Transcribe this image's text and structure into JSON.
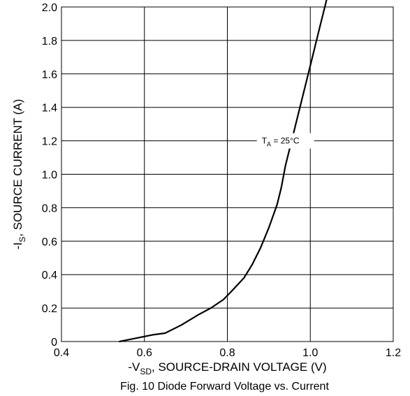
{
  "chart_data": {
    "type": "line",
    "title": "",
    "caption": "Fig. 10 Diode Forward Voltage vs. Current",
    "xlabel": {
      "prefix": "-V",
      "sub": "SD",
      "rest": ", SOURCE-DRAIN VOLTAGE (V)"
    },
    "ylabel": {
      "prefix": "-I",
      "sub": "S",
      "rest": ", SOURCE CURRENT (A)"
    },
    "xlim": [
      0.4,
      1.2
    ],
    "ylim": [
      0,
      2.0
    ],
    "x_ticks": [
      0.4,
      0.6,
      0.8,
      1.0,
      1.2
    ],
    "x_tick_labels": [
      "0.4",
      "0.6",
      "0.8",
      "1.0",
      "1.2"
    ],
    "y_ticks": [
      0,
      0.2,
      0.4,
      0.6,
      0.8,
      1.0,
      1.2,
      1.4,
      1.6,
      1.8,
      2.0
    ],
    "y_tick_labels": [
      "0",
      "0.2",
      "0.4",
      "0.6",
      "0.8",
      "1.0",
      "1.2",
      "1.4",
      "1.6",
      "1.8",
      "2.0"
    ],
    "x_grid": [
      0.6,
      0.8,
      1.0
    ],
    "grid": true,
    "series": [
      {
        "x": [
          0.54,
          0.58,
          0.62,
          0.65,
          0.69,
          0.73,
          0.76,
          0.79,
          0.81,
          0.84,
          0.86,
          0.88,
          0.9,
          0.92,
          0.93,
          0.94,
          0.96,
          0.98,
          1.0,
          1.02,
          1.04
        ],
        "y": [
          0.0,
          0.02,
          0.04,
          0.05,
          0.1,
          0.16,
          0.2,
          0.25,
          0.3,
          0.38,
          0.46,
          0.56,
          0.68,
          0.82,
          0.92,
          1.05,
          1.25,
          1.45,
          1.65,
          1.85,
          2.05
        ]
      }
    ],
    "annotations": [
      {
        "prefix": "T",
        "sub": "A",
        "rest": " = 25°C",
        "x": 0.93,
        "y": 1.2
      }
    ]
  }
}
